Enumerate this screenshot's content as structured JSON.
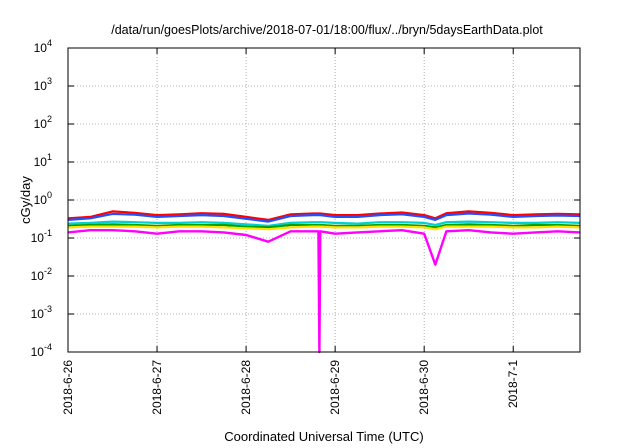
{
  "chart_data": {
    "type": "line",
    "title": "/data/run/goesPlots/archive/2018-07-01/18:00/flux/../bryn/5daysEarthData.plot",
    "xlabel": "Coordinated Universal Time (UTC)",
    "ylabel": "cGy/day",
    "y_scale": "log",
    "ylim": [
      0.0001,
      10000
    ],
    "xlim": [
      "2018-06-26",
      "2018-07-01 18:00"
    ],
    "y_ticks": [
      {
        "base": "10",
        "exp": "-4",
        "value": 0.0001
      },
      {
        "base": "10",
        "exp": "-3",
        "value": 0.001
      },
      {
        "base": "10",
        "exp": "-2",
        "value": 0.01
      },
      {
        "base": "10",
        "exp": "-1",
        "value": 0.1
      },
      {
        "base": "10",
        "exp": "0",
        "value": 1
      },
      {
        "base": "10",
        "exp": "1",
        "value": 10
      },
      {
        "base": "10",
        "exp": "2",
        "value": 100
      },
      {
        "base": "10",
        "exp": "3",
        "value": 1000
      },
      {
        "base": "10",
        "exp": "4",
        "value": 10000
      }
    ],
    "x_ticks": [
      {
        "label": "2018-6-26",
        "date": "2018-06-26"
      },
      {
        "label": "2018-6-27",
        "date": "2018-06-27"
      },
      {
        "label": "2018-6-28",
        "date": "2018-06-28"
      },
      {
        "label": "2018-6-29",
        "date": "2018-06-29"
      },
      {
        "label": "2018-6-30",
        "date": "2018-06-30"
      },
      {
        "label": "2018-7-1",
        "date": "2018-07-01"
      }
    ],
    "grid": true,
    "legend": "none",
    "x": [
      "2018-06-26 00:00",
      "2018-06-26 06:00",
      "2018-06-26 12:00",
      "2018-06-26 18:00",
      "2018-06-27 00:00",
      "2018-06-27 06:00",
      "2018-06-27 12:00",
      "2018-06-27 18:00",
      "2018-06-28 00:00",
      "2018-06-28 06:00",
      "2018-06-28 12:00",
      "2018-06-28 18:00",
      "2018-06-28 19:30",
      "2018-06-28 19:45",
      "2018-06-28 20:00",
      "2018-06-29 00:00",
      "2018-06-29 06:00",
      "2018-06-29 12:00",
      "2018-06-29 18:00",
      "2018-06-30 00:00",
      "2018-06-30 03:00",
      "2018-06-30 06:00",
      "2018-06-30 12:00",
      "2018-06-30 18:00",
      "2018-07-01 00:00",
      "2018-07-01 06:00",
      "2018-07-01 12:00",
      "2018-07-01 18:00"
    ],
    "series": [
      {
        "color": "#ff0000",
        "values": [
          0.33,
          0.36,
          0.5,
          0.46,
          0.4,
          0.42,
          0.45,
          0.43,
          0.36,
          0.3,
          0.42,
          0.44,
          0.44,
          0.44,
          0.44,
          0.4,
          0.4,
          0.44,
          0.47,
          0.4,
          0.33,
          0.45,
          0.5,
          0.46,
          0.4,
          0.42,
          0.43,
          0.42
        ]
      },
      {
        "color": "#2050ff",
        "values": [
          0.3,
          0.33,
          0.43,
          0.41,
          0.36,
          0.38,
          0.4,
          0.38,
          0.32,
          0.27,
          0.38,
          0.4,
          0.4,
          0.4,
          0.4,
          0.36,
          0.36,
          0.4,
          0.42,
          0.36,
          0.3,
          0.4,
          0.44,
          0.41,
          0.36,
          0.38,
          0.39,
          0.38
        ]
      },
      {
        "color": "#00d0d0",
        "values": [
          0.24,
          0.25,
          0.27,
          0.26,
          0.25,
          0.25,
          0.26,
          0.25,
          0.23,
          0.21,
          0.25,
          0.26,
          0.26,
          0.26,
          0.26,
          0.25,
          0.24,
          0.26,
          0.26,
          0.25,
          0.22,
          0.26,
          0.27,
          0.26,
          0.25,
          0.25,
          0.26,
          0.25
        ]
      },
      {
        "color": "#00a000",
        "values": [
          0.21,
          0.22,
          0.23,
          0.22,
          0.21,
          0.22,
          0.22,
          0.22,
          0.2,
          0.19,
          0.22,
          0.22,
          0.22,
          0.22,
          0.22,
          0.21,
          0.21,
          0.22,
          0.22,
          0.21,
          0.19,
          0.22,
          0.23,
          0.22,
          0.21,
          0.22,
          0.22,
          0.21
        ]
      },
      {
        "color": "#ffe000",
        "values": [
          0.19,
          0.2,
          0.2,
          0.2,
          0.19,
          0.2,
          0.2,
          0.19,
          0.18,
          0.17,
          0.19,
          0.2,
          0.2,
          0.2,
          0.2,
          0.19,
          0.19,
          0.2,
          0.2,
          0.19,
          0.17,
          0.2,
          0.2,
          0.2,
          0.19,
          0.19,
          0.2,
          0.19
        ]
      },
      {
        "color": "#ff00ff",
        "values": [
          0.14,
          0.16,
          0.16,
          0.15,
          0.13,
          0.15,
          0.15,
          0.14,
          0.12,
          0.08,
          0.15,
          0.15,
          0.15,
          0.0001,
          0.15,
          0.13,
          0.14,
          0.15,
          0.16,
          0.13,
          0.02,
          0.15,
          0.16,
          0.14,
          0.13,
          0.14,
          0.15,
          0.14
        ]
      }
    ]
  }
}
